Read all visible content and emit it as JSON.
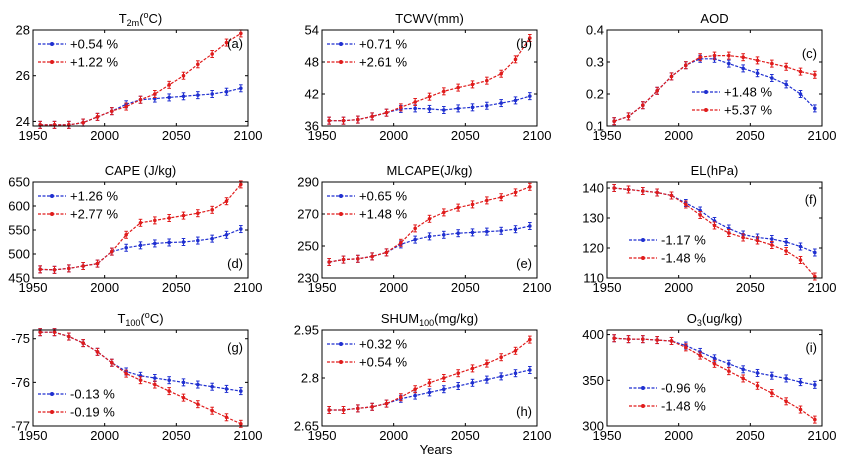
{
  "x_axis_label": "Years",
  "colors": {
    "blue": "#1f2fd0",
    "red": "#e01b1b",
    "axis": "#000000"
  },
  "chart_data": [
    {
      "type": "line",
      "letter": "(a)",
      "title": "T",
      "title_sub": "2m",
      "title_sup": "o",
      "title_rest": "C)",
      "title_open": "(",
      "x": [
        1955,
        1965,
        1975,
        1985,
        1995,
        2005,
        2015,
        2025,
        2035,
        2045,
        2055,
        2065,
        2075,
        2085,
        2095
      ],
      "series": [
        {
          "name": "+0.54 %",
          "color": "blue",
          "values": [
            23.85,
            23.85,
            23.85,
            23.95,
            24.2,
            24.45,
            24.75,
            24.95,
            25.0,
            25.05,
            25.1,
            25.15,
            25.2,
            25.3,
            25.45
          ]
        },
        {
          "name": "+1.22 %",
          "color": "red",
          "values": [
            23.85,
            23.85,
            23.85,
            23.95,
            24.2,
            24.45,
            24.65,
            24.95,
            25.2,
            25.6,
            26.0,
            26.5,
            26.95,
            27.45,
            27.85
          ]
        }
      ],
      "xlim": [
        1950,
        2100
      ],
      "xticks": [
        1950,
        2000,
        2050,
        2100
      ],
      "ylim": [
        23.8,
        28
      ],
      "yticks": [
        24,
        26,
        28
      ],
      "ytick_labels": [
        "24",
        "26",
        "28"
      ],
      "legend": "top-left"
    },
    {
      "type": "line",
      "letter": "(b)",
      "title": "TCWV(mm)",
      "x": [
        1955,
        1965,
        1975,
        1985,
        1995,
        2005,
        2015,
        2025,
        2035,
        2045,
        2055,
        2065,
        2075,
        2085,
        2095
      ],
      "series": [
        {
          "name": "+0.71 %",
          "color": "blue",
          "values": [
            37.0,
            37.0,
            37.2,
            37.8,
            38.5,
            39.2,
            39.3,
            39.2,
            39.0,
            39.3,
            39.5,
            39.8,
            40.3,
            40.8,
            41.6
          ]
        },
        {
          "name": "+2.61 %",
          "color": "red",
          "values": [
            37.0,
            37.0,
            37.2,
            37.8,
            38.5,
            39.5,
            40.5,
            41.5,
            42.5,
            43.2,
            43.8,
            44.5,
            45.8,
            48.5,
            52.5
          ]
        }
      ],
      "xlim": [
        1950,
        2100
      ],
      "xticks": [
        1950,
        2000,
        2050,
        2100
      ],
      "ylim": [
        36,
        54
      ],
      "yticks": [
        36,
        42,
        48,
        54
      ],
      "ytick_labels": [
        "36",
        "42",
        "48",
        "54"
      ],
      "legend": "top-left"
    },
    {
      "type": "line",
      "letter": "(c)",
      "title": "AOD",
      "x": [
        1955,
        1965,
        1975,
        1985,
        1995,
        2005,
        2015,
        2025,
        2035,
        2045,
        2055,
        2065,
        2075,
        2085,
        2095
      ],
      "series": [
        {
          "name": "+1.48 %",
          "color": "blue",
          "values": [
            0.115,
            0.13,
            0.165,
            0.21,
            0.255,
            0.29,
            0.31,
            0.31,
            0.295,
            0.28,
            0.265,
            0.25,
            0.23,
            0.2,
            0.155
          ]
        },
        {
          "name": "+5.37 %",
          "color": "red",
          "values": [
            0.115,
            0.13,
            0.165,
            0.21,
            0.255,
            0.29,
            0.315,
            0.32,
            0.32,
            0.315,
            0.305,
            0.295,
            0.285,
            0.27,
            0.26
          ]
        }
      ],
      "xlim": [
        1950,
        2100
      ],
      "xticks": [
        1950,
        2000,
        2050,
        2100
      ],
      "ylim": [
        0.1,
        0.4
      ],
      "yticks": [
        0.1,
        0.2,
        0.3,
        0.4
      ],
      "ytick_labels": [
        "0.1",
        "0.2",
        "0.3",
        "0.4"
      ],
      "legend": "bottom-right"
    },
    {
      "type": "line",
      "letter": "(d)",
      "title": "CAPE (J/kg)",
      "x": [
        1955,
        1965,
        1975,
        1985,
        1995,
        2005,
        2015,
        2025,
        2035,
        2045,
        2055,
        2065,
        2075,
        2085,
        2095
      ],
      "series": [
        {
          "name": "+1.26 %",
          "color": "blue",
          "values": [
            468,
            467,
            470,
            475,
            480,
            505,
            513,
            518,
            522,
            524,
            525,
            528,
            532,
            540,
            552
          ]
        },
        {
          "name": "+2.77 %",
          "color": "red",
          "values": [
            468,
            467,
            470,
            475,
            480,
            505,
            540,
            565,
            570,
            575,
            580,
            585,
            592,
            610,
            645
          ]
        }
      ],
      "xlim": [
        1950,
        2100
      ],
      "xticks": [
        1950,
        2000,
        2050,
        2100
      ],
      "ylim": [
        450,
        650
      ],
      "yticks": [
        450,
        500,
        550,
        600,
        650
      ],
      "ytick_labels": [
        "450",
        "500",
        "550",
        "600",
        "650"
      ],
      "legend": "top-left"
    },
    {
      "type": "line",
      "letter": "(e)",
      "title": "MLCAPE(J/kg)",
      "x": [
        1955,
        1965,
        1975,
        1985,
        1995,
        2005,
        2015,
        2025,
        2035,
        2045,
        2055,
        2065,
        2075,
        2085,
        2095
      ],
      "series": [
        {
          "name": "+0.65 %",
          "color": "blue",
          "values": [
            240,
            241.5,
            242,
            243.5,
            246,
            251,
            254,
            256,
            257,
            258,
            258.5,
            259,
            259.5,
            260.5,
            262.5
          ]
        },
        {
          "name": "+1.48 %",
          "color": "red",
          "values": [
            240,
            241.5,
            242,
            243.5,
            246,
            252,
            261,
            267,
            271,
            274,
            276,
            278.5,
            280.5,
            283.5,
            287
          ]
        }
      ],
      "xlim": [
        1950,
        2100
      ],
      "xticks": [
        1950,
        2000,
        2050,
        2100
      ],
      "ylim": [
        230,
        290
      ],
      "yticks": [
        230,
        250,
        270,
        290
      ],
      "ytick_labels": [
        "230",
        "250",
        "270",
        "290"
      ],
      "legend": "top-left"
    },
    {
      "type": "line",
      "letter": "(f)",
      "title": "EL(hPa)",
      "x": [
        1955,
        1965,
        1975,
        1985,
        1995,
        2005,
        2015,
        2025,
        2035,
        2045,
        2055,
        2065,
        2075,
        2085,
        2095
      ],
      "series": [
        {
          "name": "-1.17 %",
          "color": "blue",
          "values": [
            140,
            139.5,
            139,
            138.5,
            137.5,
            135,
            132.5,
            129,
            126.5,
            124.5,
            123.5,
            123,
            122,
            120.5,
            118.5
          ]
        },
        {
          "name": "-1.48 %",
          "color": "red",
          "values": [
            140,
            139.5,
            139,
            138.5,
            137.5,
            134.5,
            131,
            127.5,
            125,
            123.5,
            122.5,
            121,
            119,
            116,
            110.5
          ]
        }
      ],
      "xlim": [
        1950,
        2100
      ],
      "xticks": [
        1950,
        2000,
        2050,
        2100
      ],
      "ylim": [
        110,
        142
      ],
      "yticks": [
        110,
        120,
        130,
        140
      ],
      "ytick_labels": [
        "110",
        "120",
        "130",
        "140"
      ],
      "legend": "bottom-left"
    },
    {
      "type": "line",
      "letter": "(g)",
      "title": "T",
      "title_sub": "100",
      "title_sup": "o",
      "title_rest": "C)",
      "title_open": "(",
      "x": [
        1955,
        1965,
        1975,
        1985,
        1995,
        2005,
        2015,
        2025,
        2035,
        2045,
        2055,
        2065,
        2075,
        2085,
        2095
      ],
      "series": [
        {
          "name": "-0.13 %",
          "color": "blue",
          "values": [
            -74.85,
            -74.85,
            -74.95,
            -75.1,
            -75.3,
            -75.55,
            -75.75,
            -75.85,
            -75.9,
            -75.95,
            -76.0,
            -76.05,
            -76.1,
            -76.15,
            -76.2
          ]
        },
        {
          "name": "-0.19 %",
          "color": "red",
          "values": [
            -74.85,
            -74.85,
            -74.95,
            -75.1,
            -75.3,
            -75.55,
            -75.8,
            -75.95,
            -76.05,
            -76.2,
            -76.35,
            -76.5,
            -76.65,
            -76.8,
            -76.95
          ]
        }
      ],
      "xlim": [
        1950,
        2100
      ],
      "xticks": [
        1950,
        2000,
        2050,
        2100
      ],
      "ylim": [
        -77,
        -74.8
      ],
      "yticks": [
        -75,
        -76,
        -77
      ],
      "ytick_labels": [
        "-75",
        "-76",
        "-77"
      ],
      "legend": "bottom-left"
    },
    {
      "type": "line",
      "letter": "(h)",
      "title": "SHUM",
      "title_sub": "100",
      "title_rest": "(mg/kg)",
      "x": [
        1955,
        1965,
        1975,
        1985,
        1995,
        2005,
        2015,
        2025,
        2035,
        2045,
        2055,
        2065,
        2075,
        2085,
        2095
      ],
      "series": [
        {
          "name": "+0.32 %",
          "color": "blue",
          "values": [
            2.7,
            2.7,
            2.705,
            2.71,
            2.72,
            2.735,
            2.745,
            2.755,
            2.765,
            2.775,
            2.785,
            2.795,
            2.805,
            2.815,
            2.825
          ]
        },
        {
          "name": "+0.54 %",
          "color": "red",
          "values": [
            2.7,
            2.7,
            2.705,
            2.71,
            2.72,
            2.74,
            2.765,
            2.785,
            2.8,
            2.815,
            2.83,
            2.845,
            2.865,
            2.885,
            2.92
          ]
        }
      ],
      "xlim": [
        1950,
        2100
      ],
      "xticks": [
        1950,
        2000,
        2050,
        2100
      ],
      "ylim": [
        2.65,
        2.95
      ],
      "yticks": [
        2.65,
        2.8,
        2.95
      ],
      "ytick_labels": [
        "2.65",
        "2.8",
        "2.95"
      ],
      "legend": "top-left"
    },
    {
      "type": "line",
      "letter": "(i)",
      "title": "O",
      "title_sub": "3",
      "title_rest": "(ug/kg)",
      "x": [
        1955,
        1965,
        1975,
        1985,
        1995,
        2005,
        2015,
        2025,
        2035,
        2045,
        2055,
        2065,
        2075,
        2085,
        2095
      ],
      "series": [
        {
          "name": "-0.96 %",
          "color": "blue",
          "values": [
            396,
            395,
            395,
            394,
            393,
            388,
            381,
            374,
            368,
            362,
            358,
            355,
            352,
            348,
            345
          ]
        },
        {
          "name": "-1.48 %",
          "color": "red",
          "values": [
            396,
            395,
            395,
            394,
            393,
            386,
            377,
            368,
            360,
            352,
            344,
            336,
            327,
            318,
            307
          ]
        }
      ],
      "xlim": [
        1950,
        2100
      ],
      "xticks": [
        1950,
        2000,
        2050,
        2100
      ],
      "ylim": [
        300,
        405
      ],
      "yticks": [
        300,
        350,
        400
      ],
      "ytick_labels": [
        "300",
        "350",
        "400"
      ],
      "legend": "bottom-left"
    }
  ]
}
